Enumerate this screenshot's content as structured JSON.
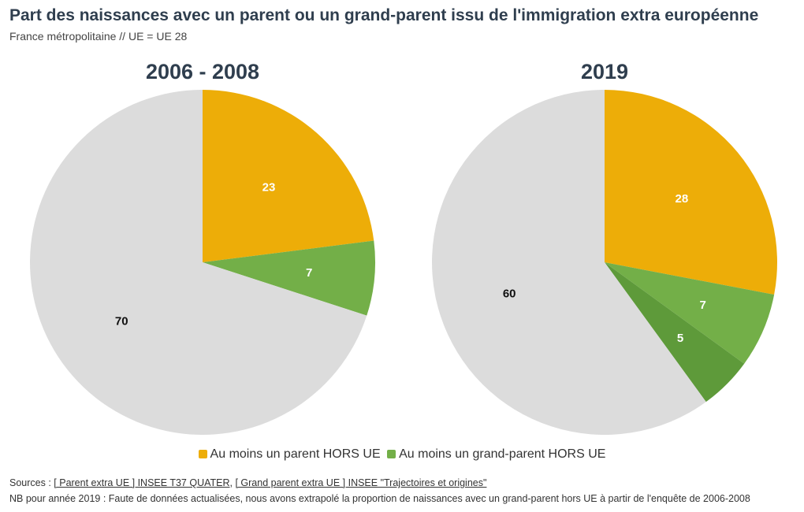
{
  "header": {
    "title": "Part des naissances avec un parent ou un grand-parent issu de l'immigration extra européenne",
    "subtitle": "France métropolitaine // UE = UE 28"
  },
  "legend": [
    {
      "label": "Au moins un parent HORS UE",
      "color": "#EDAD08"
    },
    {
      "label": "Au moins un grand-parent HORS UE",
      "color": "#73AF48"
    }
  ],
  "chart_data": [
    {
      "type": "pie",
      "title": "2006 - 2008",
      "slices": [
        {
          "name": "Au moins un parent HORS UE",
          "value": 23,
          "color": "#EDAD08",
          "label_color": "#ffffff"
        },
        {
          "name": "Au moins un grand-parent HORS UE",
          "value": 7,
          "color": "#73AF48",
          "label_color": "#ffffff"
        },
        {
          "name": "",
          "value": 70,
          "color": "#DCDCDC",
          "label_color": "#111111"
        }
      ]
    },
    {
      "type": "pie",
      "title": "2019",
      "slices": [
        {
          "name": "Au moins un parent HORS UE",
          "value": 28,
          "color": "#EDAD08",
          "label_color": "#ffffff"
        },
        {
          "name": "Au moins un grand-parent HORS UE",
          "value": 7,
          "color": "#73AF48",
          "label_color": "#ffffff"
        },
        {
          "name": "",
          "value": 5,
          "color": "#5E9A3A",
          "label_color": "#ffffff"
        },
        {
          "name": "",
          "value": 60,
          "color": "#DCDCDC",
          "label_color": "#111111"
        }
      ]
    }
  ],
  "footer": {
    "sources_prefix": "Sources : ",
    "source_link_1": "[ Parent extra UE ] INSEE T37 QUATER",
    "separator": ", ",
    "source_link_2": "[ Grand parent extra UE ] INSEE \"Trajectoires et origines\"",
    "note": "NB pour année 2019 : Faute de données actualisées, nous avons extrapolé la proportion de naissances avec un grand-parent hors UE à partir de l'enquête de 2006-2008"
  }
}
